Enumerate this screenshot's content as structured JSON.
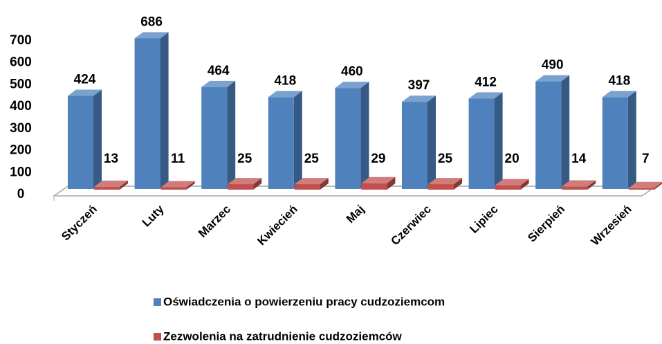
{
  "chart_data": {
    "type": "bar3d",
    "categories": [
      "Styczeń",
      "Luty",
      "Marzec",
      "Kwiecień",
      "Maj",
      "Czerwiec",
      "Lipiec",
      "Sierpień",
      "Wrzesień"
    ],
    "series": [
      {
        "name": "Oświadczenia o powierzeniu pracy cudzoziemcom",
        "color": "#4f81bd",
        "values": [
          424,
          686,
          464,
          418,
          460,
          397,
          412,
          490,
          418
        ]
      },
      {
        "name": "Zezwolenia na zatrudnienie cudzoziemców",
        "color": "#c0504d",
        "values": [
          13,
          11,
          25,
          25,
          29,
          25,
          20,
          14,
          7
        ]
      }
    ],
    "ylim": [
      0,
      700
    ],
    "yticks": [
      0,
      100,
      200,
      300,
      400,
      500,
      600,
      700
    ],
    "grid": false,
    "legend": "bottom"
  }
}
